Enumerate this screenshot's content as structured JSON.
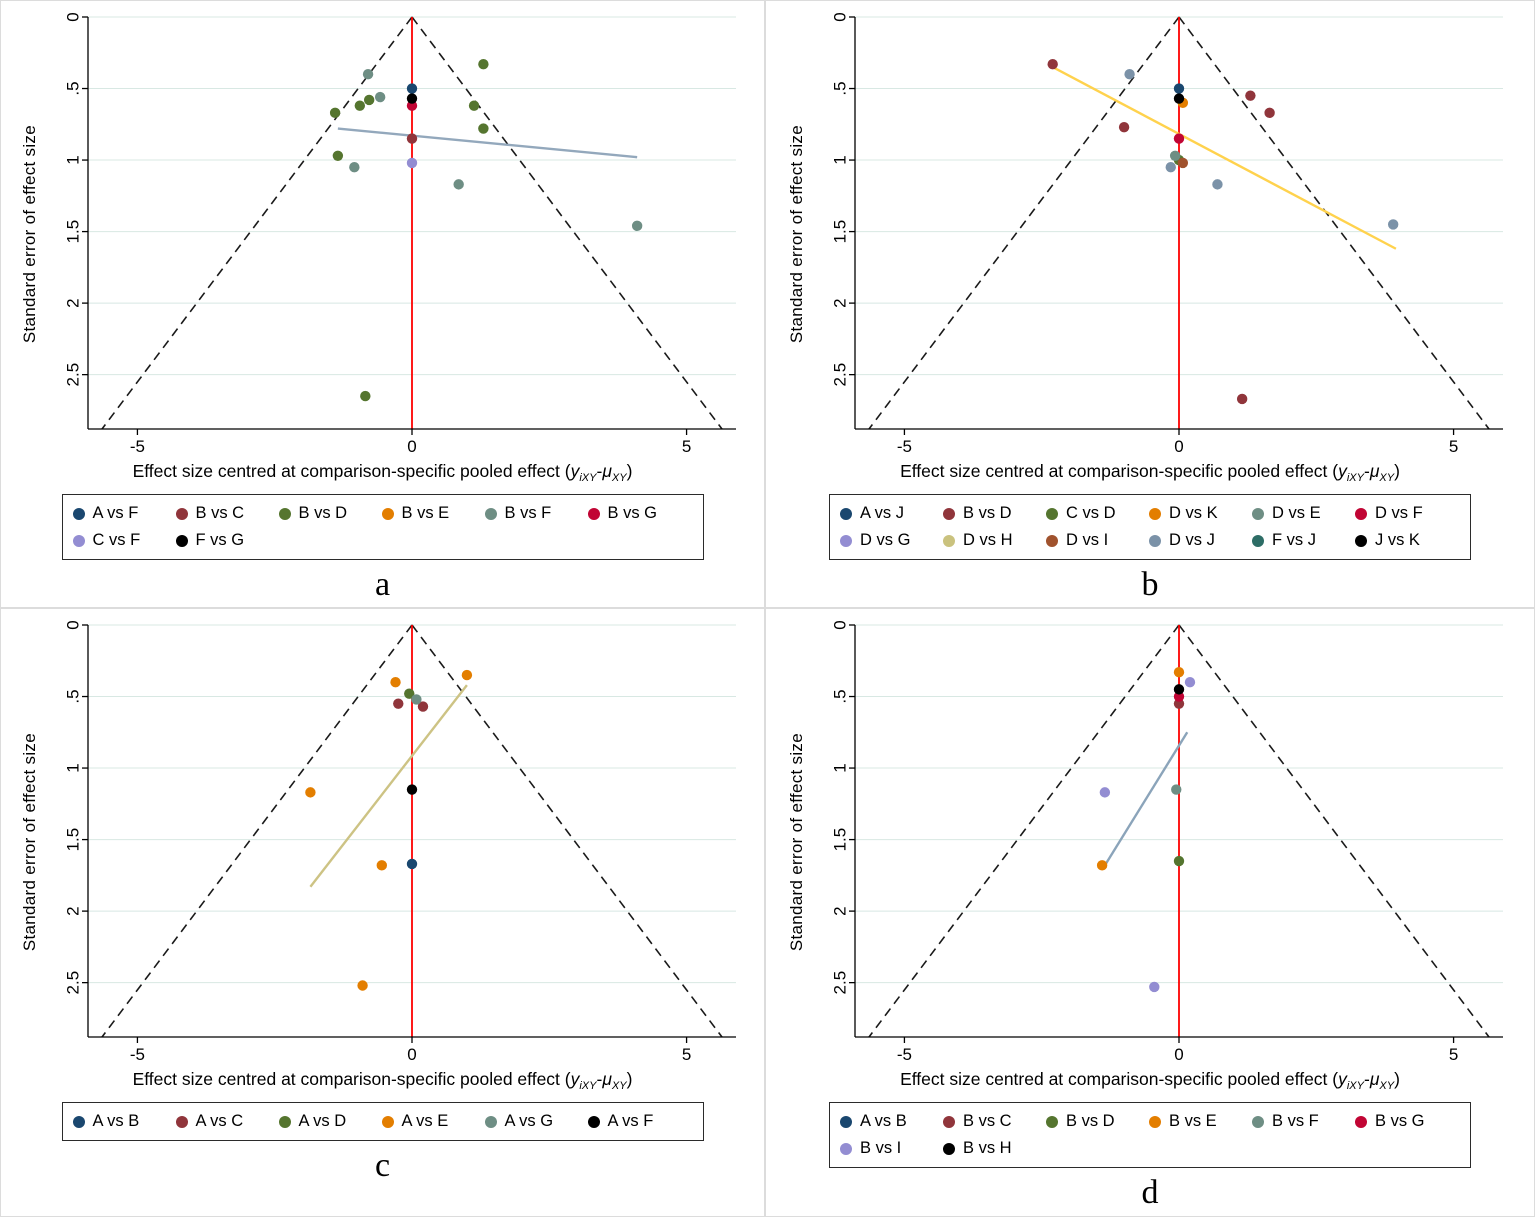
{
  "axis": {
    "ylabel": "Standard error of effect size",
    "xlabel": {
      "pre": "Effect size centred at comparison-specific pooled effect (",
      "var1": "y",
      "sub1": "iXY",
      "dash": "-",
      "var2": "μ",
      "sub2": "XY",
      "post": ")"
    },
    "yticks": {
      "labels": [
        "0",
        ".5",
        "1",
        "1.5",
        "2",
        "2.5"
      ],
      "values": [
        0,
        0.5,
        1,
        1.5,
        2,
        2.5
      ]
    },
    "xticks": {
      "labels": [
        "-5",
        "0",
        "5"
      ],
      "values": [
        -5,
        0,
        5
      ]
    },
    "xlim": [
      -5.9,
      5.9
    ],
    "selim": [
      0,
      2.88
    ],
    "funnel_multiplier": 1.96
  },
  "colors": {
    "zero_line": "#fe0000",
    "funnel": "#1a1a1a",
    "grid": "#d8e8e3",
    "axis_line": "#000000"
  },
  "chart_data": [
    {
      "type": "scatter",
      "panel_label": "a",
      "legend_position": "bottom",
      "series": [
        {
          "name": "A vs F",
          "color": "#1a476f",
          "points": [
            [
              0,
              0.5
            ]
          ]
        },
        {
          "name": "B vs C",
          "color": "#90353b",
          "points": [
            [
              0,
              0.85
            ]
          ]
        },
        {
          "name": "B vs D",
          "color": "#55752f",
          "points": [
            [
              -1.4,
              0.67
            ],
            [
              -0.95,
              0.62
            ],
            [
              -0.78,
              0.58
            ],
            [
              -1.35,
              0.97
            ],
            [
              1.3,
              0.33
            ],
            [
              1.13,
              0.62
            ],
            [
              1.3,
              0.78
            ],
            [
              -0.85,
              2.65
            ]
          ]
        },
        {
          "name": "B vs E",
          "color": "#e37e00",
          "points": []
        },
        {
          "name": "B vs F",
          "color": "#6e8e84",
          "points": [
            [
              -0.8,
              0.4
            ],
            [
              -0.58,
              0.56
            ],
            [
              -1.05,
              1.05
            ],
            [
              0.85,
              1.17
            ],
            [
              4.1,
              1.46
            ]
          ]
        },
        {
          "name": "B vs G",
          "color": "#c10534",
          "points": [
            [
              0,
              0.62
            ]
          ]
        },
        {
          "name": "C vs F",
          "points_note": "",
          "points": [
            [
              0,
              1.02
            ]
          ],
          "color": "#938dd2"
        },
        {
          "name": "F vs G",
          "color": "#000000",
          "points": [
            [
              0,
              0.57
            ]
          ]
        }
      ],
      "fit_line": {
        "color": "#93a8bc",
        "points": [
          [
            -1.35,
            0.78
          ],
          [
            4.1,
            0.98
          ]
        ]
      }
    },
    {
      "type": "scatter",
      "panel_label": "b",
      "legend_position": "bottom",
      "series": [
        {
          "name": "A vs J",
          "color": "#1a476f",
          "points": [
            [
              0,
              0.5
            ]
          ]
        },
        {
          "name": "B vs D",
          "color": "#90353b",
          "points": [
            [
              -2.3,
              0.33
            ],
            [
              -1.0,
              0.77
            ],
            [
              1.3,
              0.55
            ],
            [
              1.65,
              0.67
            ],
            [
              1.15,
              2.67
            ]
          ]
        },
        {
          "name": "C vs D",
          "color": "#55752f",
          "points": [
            [
              0,
              1.0
            ]
          ]
        },
        {
          "name": "D vs K",
          "color": "#e37e00",
          "points": [
            [
              0.07,
              0.6
            ]
          ]
        },
        {
          "name": "D vs E",
          "color": "#6e8e84",
          "points": [
            [
              -0.07,
              0.97
            ]
          ]
        },
        {
          "name": "D vs F",
          "color": "#c10534",
          "points": [
            [
              0,
              0.85
            ]
          ]
        },
        {
          "name": "D vs G",
          "color": "#938dd2",
          "points": []
        },
        {
          "name": "D vs H",
          "color": "#cac27e",
          "points": []
        },
        {
          "name": "D vs I",
          "color": "#a0522d",
          "points": [
            [
              0.07,
              1.02
            ]
          ]
        },
        {
          "name": "D vs J",
          "color": "#7b92a8",
          "points": [
            [
              -0.9,
              0.4
            ],
            [
              -0.15,
              1.05
            ],
            [
              0.7,
              1.17
            ],
            [
              3.9,
              1.45
            ]
          ]
        },
        {
          "name": "F vs J",
          "color": "#2d6d66",
          "points": []
        },
        {
          "name": "J vs K",
          "color": "#000000",
          "points": [
            [
              0,
              0.57
            ]
          ]
        }
      ],
      "fit_line": {
        "color": "#ffd24d",
        "points": [
          [
            -2.3,
            0.35
          ],
          [
            3.95,
            1.62
          ]
        ]
      }
    },
    {
      "type": "scatter",
      "panel_label": "c",
      "legend_position": "bottom",
      "series": [
        {
          "name": "A vs B",
          "color": "#1a476f",
          "points": [
            [
              0,
              1.67
            ]
          ]
        },
        {
          "name": "A vs C",
          "color": "#90353b",
          "points": [
            [
              -0.25,
              0.55
            ],
            [
              0.2,
              0.57
            ]
          ]
        },
        {
          "name": "A vs D",
          "color": "#55752f",
          "points": [
            [
              -0.05,
              0.48
            ]
          ]
        },
        {
          "name": "A vs E",
          "color": "#e37e00",
          "points": [
            [
              -0.3,
              0.4
            ],
            [
              1.0,
              0.35
            ],
            [
              -1.85,
              1.17
            ],
            [
              -0.55,
              1.68
            ],
            [
              -0.9,
              2.52
            ]
          ]
        },
        {
          "name": "A vs G",
          "color": "#6e8e84",
          "points": [
            [
              0.08,
              0.52
            ]
          ]
        },
        {
          "name": "A vs F",
          "color": "#000000",
          "points": [
            [
              0,
              1.15
            ]
          ]
        }
      ],
      "fit_line": {
        "color": "#cdc384",
        "points": [
          [
            -1.85,
            1.83
          ],
          [
            1.0,
            0.42
          ]
        ]
      }
    },
    {
      "type": "scatter",
      "panel_label": "d",
      "legend_position": "bottom",
      "series": [
        {
          "name": "A vs B",
          "color": "#1a476f",
          "points": []
        },
        {
          "name": "B vs C",
          "color": "#90353b",
          "points": [
            [
              0,
              0.55
            ]
          ]
        },
        {
          "name": "B vs D",
          "color": "#55752f",
          "points": [
            [
              0,
              1.65
            ]
          ]
        },
        {
          "name": "B vs E",
          "color": "#e37e00",
          "points": [
            [
              0,
              0.33
            ],
            [
              -1.4,
              1.68
            ]
          ]
        },
        {
          "name": "B vs F",
          "color": "#6e8e84",
          "points": [
            [
              -0.05,
              1.15
            ]
          ]
        },
        {
          "name": "B vs G",
          "color": "#c10534",
          "points": [
            [
              0,
              0.5
            ]
          ]
        },
        {
          "name": "B vs I",
          "color": "#938dd2",
          "points": [
            [
              0.2,
              0.4
            ],
            [
              -1.35,
              1.17
            ],
            [
              -0.45,
              2.53
            ]
          ]
        },
        {
          "name": "B vs H",
          "color": "#000000",
          "points": [
            [
              0,
              0.45
            ]
          ]
        }
      ],
      "fit_line": {
        "color": "#8ba4ba",
        "points": [
          [
            -1.35,
            1.68
          ],
          [
            0.15,
            0.75
          ]
        ]
      }
    }
  ]
}
